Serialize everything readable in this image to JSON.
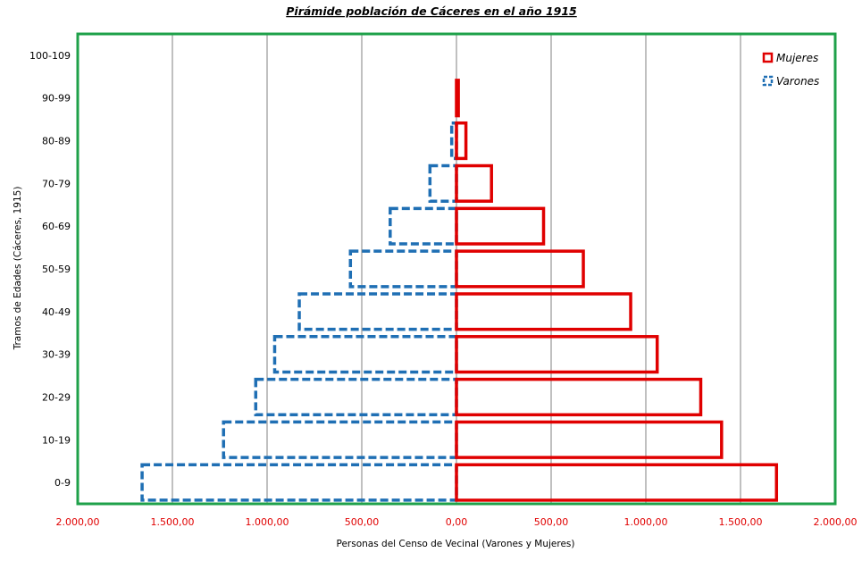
{
  "chart_data": {
    "type": "bar",
    "orientation": "horizontal-population-pyramid",
    "title": "Pirámide población de Cáceres  en el año 1915",
    "xlabel": "Personas del Censo de Vecinal (Varones y Mujeres)",
    "ylabel": "Tramos de Edades (Cáceres, 1915)",
    "categories": [
      "0-9",
      "10-19",
      "20-29",
      "30-39",
      "40-49",
      "50-59",
      "60-69",
      "70-79",
      "80-89",
      "90-99",
      "100-109"
    ],
    "xlim": [
      -2000,
      2000
    ],
    "xticks": [
      -2000,
      -1500,
      -1000,
      -500,
      0,
      500,
      1000,
      1500,
      2000
    ],
    "xtick_labels": [
      "2.000,00",
      "1.500,00",
      "1.000,00",
      "500,00",
      "0,00",
      "500,00",
      "1.000,00",
      "1.500,00",
      "2.000,00"
    ],
    "grid": "vertical",
    "legend_position": "top-right",
    "series": [
      {
        "name": "Mujeres",
        "side": "right",
        "color": "#e00000",
        "line_style": "solid",
        "values": [
          1690,
          1400,
          1290,
          1060,
          920,
          670,
          460,
          185,
          50,
          10,
          0
        ]
      },
      {
        "name": "Varones",
        "side": "left",
        "color": "#1f6fb4",
        "line_style": "dashed",
        "values": [
          1660,
          1230,
          1060,
          960,
          830,
          560,
          350,
          140,
          25,
          0,
          0
        ]
      }
    ],
    "colors": {
      "plot_border": "#1fa14a",
      "grid": "#808080",
      "tick_labels_x": "#e00000"
    }
  }
}
